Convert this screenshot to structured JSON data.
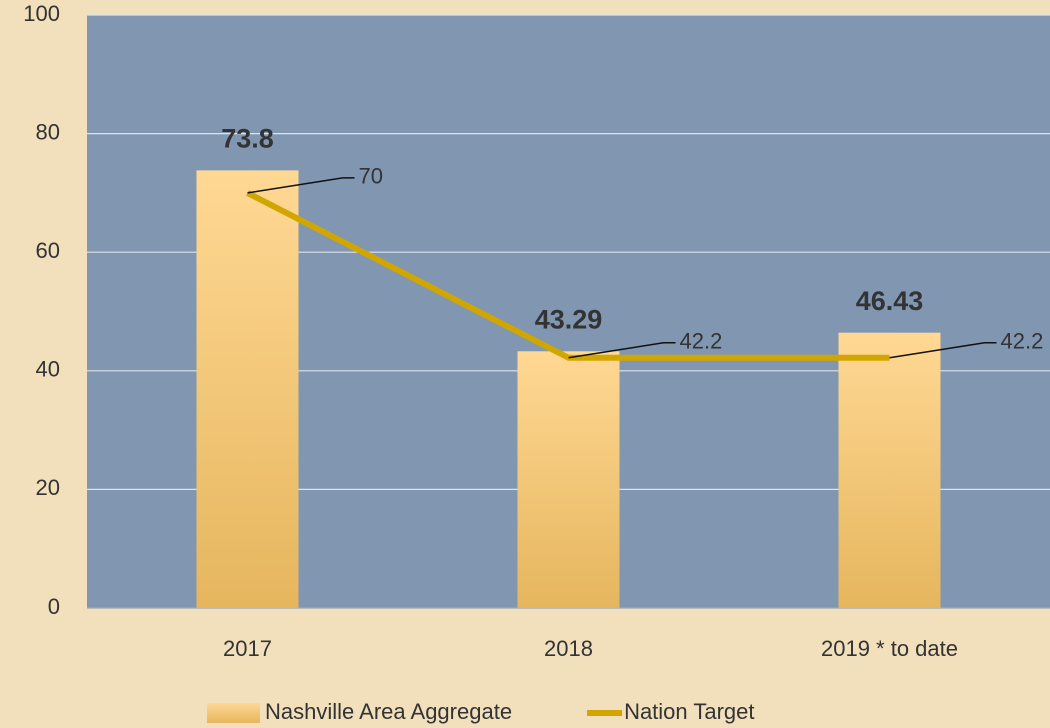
{
  "chart_data": {
    "type": "bar",
    "categories": [
      "2017",
      "2018",
      "2019 * to date"
    ],
    "series": [
      {
        "name": "Nashville Area Aggregate",
        "type": "bar",
        "color": "#ffd48a",
        "values": [
          73.8,
          43.29,
          46.43
        ]
      },
      {
        "name": "Nation Target",
        "type": "line",
        "color": "#d1a600",
        "values": [
          70,
          42.2,
          42.2
        ]
      }
    ],
    "ylim": [
      0,
      100
    ],
    "yticks": [
      0,
      20,
      40,
      60,
      80,
      100
    ],
    "grid": true,
    "legend": "bottom"
  }
}
